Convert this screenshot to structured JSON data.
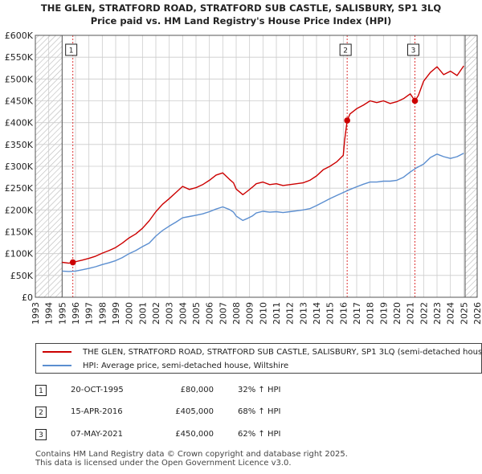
{
  "title_line1": "THE GLEN, STRATFORD ROAD, STRATFORD SUB CASTLE, SALISBURY, SP1 3LQ",
  "title_line2": "Price paid vs. HM Land Registry's House Price Index (HPI)",
  "colors": {
    "property": "#cc0000",
    "hpi": "#5b8ed0",
    "grid": "#cccccc",
    "hatch": "#b8b8b8",
    "marker_line": "#dd3333"
  },
  "chart_data": {
    "type": "line",
    "title": "Price paid vs. HM Land Registry's House Price Index (HPI)",
    "xlabel": "",
    "ylabel": "",
    "xlim": [
      1993,
      2026
    ],
    "ylim": [
      0,
      600000
    ],
    "x_ticks": [
      1993,
      1994,
      1995,
      1996,
      1997,
      1998,
      1999,
      2000,
      2001,
      2002,
      2003,
      2004,
      2005,
      2006,
      2007,
      2008,
      2009,
      2010,
      2011,
      2012,
      2013,
      2014,
      2015,
      2016,
      2017,
      2018,
      2019,
      2020,
      2021,
      2022,
      2023,
      2024,
      2025,
      2026
    ],
    "y_ticks": [
      0,
      50000,
      100000,
      150000,
      200000,
      250000,
      300000,
      350000,
      400000,
      450000,
      500000,
      550000,
      600000
    ],
    "y_tick_labels": [
      "£0",
      "£50K",
      "£100K",
      "£150K",
      "£200K",
      "£250K",
      "£300K",
      "£350K",
      "£400K",
      "£450K",
      "£500K",
      "£550K",
      "£600K"
    ],
    "hatched_ranges": [
      [
        1993,
        1995.0
      ],
      [
        2025.1,
        2026
      ]
    ],
    "series": [
      {
        "name": "THE GLEN, STRATFORD ROAD, STRATFORD SUB CASTLE, SALISBURY, SP1 3LQ (semi-detached house)",
        "color": "#cc0000",
        "x": [
          1995.0,
          1995.5,
          1995.8,
          1996.5,
          1997.0,
          1997.5,
          1998.0,
          1998.5,
          1999.0,
          1999.5,
          2000.0,
          2000.5,
          2001.0,
          2001.5,
          2002.0,
          2002.5,
          2003.0,
          2003.5,
          2004.0,
          2004.5,
          2005.0,
          2005.5,
          2006.0,
          2006.5,
          2007.0,
          2007.5,
          2007.8,
          2008.0,
          2008.5,
          2008.8,
          2009.2,
          2009.5,
          2010.0,
          2010.5,
          2011.0,
          2011.5,
          2012.0,
          2012.5,
          2013.0,
          2013.5,
          2014.0,
          2014.5,
          2015.0,
          2015.5,
          2016.0,
          2016.1,
          2016.29,
          2016.5,
          2017.0,
          2017.5,
          2018.0,
          2018.5,
          2019.0,
          2019.5,
          2020.0,
          2020.5,
          2021.0,
          2021.35,
          2021.6,
          2022.0,
          2022.5,
          2023.0,
          2023.5,
          2024.0,
          2024.5,
          2025.0
        ],
        "values": [
          80000,
          78000,
          80000,
          85000,
          89000,
          94000,
          101000,
          107000,
          114000,
          124000,
          136000,
          145000,
          158000,
          175000,
          196000,
          213000,
          226000,
          240000,
          254000,
          247000,
          251000,
          258000,
          268000,
          280000,
          285000,
          270000,
          262000,
          248000,
          235000,
          242000,
          252000,
          260000,
          264000,
          258000,
          260000,
          256000,
          258000,
          260000,
          262000,
          268000,
          278000,
          292000,
          300000,
          310000,
          325000,
          360000,
          405000,
          420000,
          432000,
          440000,
          450000,
          446000,
          450000,
          444000,
          448000,
          455000,
          466000,
          450000,
          462000,
          495000,
          515000,
          528000,
          510000,
          518000,
          508000,
          530000
        ]
      },
      {
        "name": "HPI: Average price, semi-detached house, Wiltshire",
        "color": "#5b8ed0",
        "x": [
          1995.0,
          1995.5,
          1996.0,
          1996.5,
          1997.0,
          1997.5,
          1998.0,
          1998.5,
          1999.0,
          1999.5,
          2000.0,
          2000.5,
          2001.0,
          2001.5,
          2002.0,
          2002.5,
          2003.0,
          2003.5,
          2004.0,
          2004.5,
          2005.0,
          2005.5,
          2006.0,
          2006.5,
          2007.0,
          2007.5,
          2007.8,
          2008.0,
          2008.5,
          2008.8,
          2009.2,
          2009.5,
          2010.0,
          2010.5,
          2011.0,
          2011.5,
          2012.0,
          2012.5,
          2013.0,
          2013.5,
          2014.0,
          2014.5,
          2015.0,
          2015.5,
          2016.0,
          2016.5,
          2017.0,
          2017.5,
          2018.0,
          2018.5,
          2019.0,
          2019.5,
          2020.0,
          2020.5,
          2021.0,
          2021.5,
          2022.0,
          2022.5,
          2023.0,
          2023.5,
          2024.0,
          2024.5,
          2025.0
        ],
        "values": [
          60000,
          59000,
          60000,
          63000,
          66000,
          70000,
          75000,
          79000,
          84000,
          91000,
          100000,
          107000,
          116000,
          124000,
          140000,
          153000,
          163000,
          172000,
          182000,
          185000,
          188000,
          191000,
          196000,
          202000,
          207000,
          201000,
          195000,
          186000,
          176000,
          180000,
          186000,
          193000,
          197000,
          195000,
          196000,
          194000,
          196000,
          198000,
          200000,
          203000,
          210000,
          218000,
          226000,
          233000,
          240000,
          247000,
          253000,
          259000,
          264000,
          264000,
          266000,
          266000,
          268000,
          275000,
          287000,
          297000,
          305000,
          320000,
          328000,
          322000,
          318000,
          322000,
          330000
        ]
      }
    ],
    "sales": [
      {
        "label": "1",
        "x": 1995.8,
        "value": 80000
      },
      {
        "label": "2",
        "x": 2016.29,
        "value": 405000
      },
      {
        "label": "3",
        "x": 2021.35,
        "value": 450000
      }
    ],
    "legend_position": "bottom"
  },
  "legend": {
    "property_label": "THE GLEN, STRATFORD ROAD, STRATFORD SUB CASTLE, SALISBURY, SP1 3LQ (semi-detached house)",
    "hpi_label": "HPI: Average price, semi-detached house, Wiltshire"
  },
  "transactions": [
    {
      "num": "1",
      "date": "20-OCT-1995",
      "price": "£80,000",
      "hpi": "32% ↑ HPI"
    },
    {
      "num": "2",
      "date": "15-APR-2016",
      "price": "£405,000",
      "hpi": "68% ↑ HPI"
    },
    {
      "num": "3",
      "date": "07-MAY-2021",
      "price": "£450,000",
      "hpi": "62% ↑ HPI"
    }
  ],
  "footer_line1": "Contains HM Land Registry data © Crown copyright and database right 2025.",
  "footer_line2": "This data is licensed under the Open Government Licence v3.0."
}
